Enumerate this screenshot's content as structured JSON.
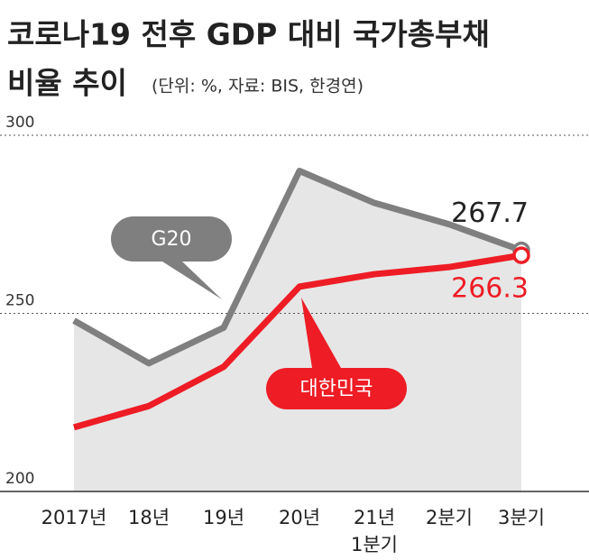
{
  "chart_data": {
    "type": "line",
    "title": "코로나19 전후 GDP 대비 국가총부채",
    "title_line2": "비율 추이",
    "subtitle": "(단위: %, 자료: BIS, 한경연)",
    "categories": [
      "2017년",
      "18년",
      "19년",
      "20년",
      "21년\n1분기",
      "2분기",
      "3분기"
    ],
    "series": [
      {
        "name": "G20",
        "color": "#7f7f7f",
        "values": [
          248,
          236,
          246,
          290,
          281,
          275,
          267.7
        ]
      },
      {
        "name": "대한민국",
        "color": "#ee1c25",
        "values": [
          218,
          224,
          235,
          257.5,
          261,
          263,
          266.3
        ]
      }
    ],
    "ylim": [
      200,
      300
    ],
    "yticks": [
      200,
      250,
      300
    ],
    "grid": true,
    "area_color": "#e6e6e6"
  }
}
